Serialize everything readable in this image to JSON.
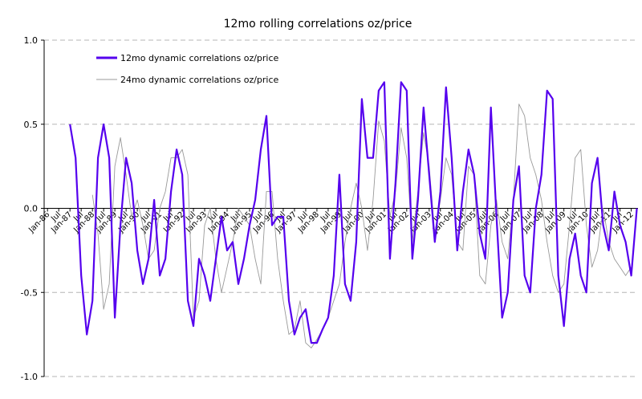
{
  "chart_data": {
    "type": "line",
    "title": "12mo rolling correlations oz/price",
    "xlabel": "",
    "ylabel": "",
    "ylim": [
      -1.0,
      1.0
    ],
    "y_ticks": [
      "1.0",
      "0.5",
      "0.0",
      "-0.5",
      "-1.0"
    ],
    "grid": true,
    "legend_position": "top-left",
    "x_tick_labels": [
      "Jan-86",
      "Jul",
      "Jan-87",
      "Jul",
      "Jan-88",
      "Jul",
      "Jan-89",
      "Jul",
      "Jan-90",
      "Jul",
      "Jan-91",
      "Jul",
      "Jan-92",
      "Jul",
      "Jan-93",
      "Jul",
      "Jan-94",
      "Jul",
      "Jan-95",
      "Jul",
      "Jan-96",
      "Jul",
      "Jan-97",
      "Jul",
      "Jan-98",
      "Jul",
      "Jan-99",
      "Jul",
      "Jan-00",
      "Jul",
      "Jan-01",
      "Jul",
      "Jan-02",
      "Jul",
      "Jan-03",
      "Jul",
      "Jan-04",
      "Jul",
      "Jan-05",
      "Jul",
      "Jan-06",
      "Jul",
      "Jan-07",
      "Jul",
      "Jan-08",
      "Jul",
      "Jan-09",
      "Jul",
      "Jan-10",
      "Jul",
      "Jan-11",
      "Jul",
      "Jan-12"
    ],
    "x": [
      1987.0,
      1987.25,
      1987.5,
      1987.75,
      1988.0,
      1988.25,
      1988.5,
      1988.75,
      1989.0,
      1989.25,
      1989.5,
      1989.75,
      1990.0,
      1990.25,
      1990.5,
      1990.75,
      1991.0,
      1991.25,
      1991.5,
      1991.75,
      1992.0,
      1992.25,
      1992.5,
      1992.75,
      1993.0,
      1993.25,
      1993.5,
      1993.75,
      1994.0,
      1994.25,
      1994.5,
      1994.75,
      1995.0,
      1995.25,
      1995.5,
      1995.75,
      1996.0,
      1996.25,
      1996.5,
      1996.75,
      1997.0,
      1997.25,
      1997.5,
      1997.75,
      1998.0,
      1998.25,
      1998.5,
      1998.75,
      1999.0,
      1999.25,
      1999.5,
      1999.75,
      2000.0,
      2000.25,
      2000.5,
      2000.75,
      2001.0,
      2001.25,
      2001.5,
      2001.75,
      2002.0,
      2002.25,
      2002.5,
      2002.75,
      2003.0,
      2003.25,
      2003.5,
      2003.75,
      2004.0,
      2004.25,
      2004.5,
      2004.75,
      2005.0,
      2005.25,
      2005.5,
      2005.75,
      2006.0,
      2006.25,
      2006.5,
      2006.75,
      2007.0,
      2007.25,
      2007.5,
      2007.75,
      2008.0,
      2008.25,
      2008.5,
      2008.75,
      2009.0,
      2009.25,
      2009.5,
      2009.75,
      2010.0,
      2010.25,
      2010.5,
      2010.75,
      2011.0,
      2011.25,
      2011.5,
      2011.75,
      2012.0,
      2012.25
    ],
    "series": [
      {
        "name": "12mo dynamic correlations oz/price",
        "color": "#5500ee",
        "values": [
          0.5,
          0.3,
          -0.4,
          -0.75,
          -0.55,
          0.3,
          0.5,
          0.3,
          -0.65,
          -0.1,
          0.3,
          0.15,
          -0.25,
          -0.45,
          -0.3,
          0.05,
          -0.4,
          -0.3,
          0.1,
          0.35,
          0.2,
          -0.55,
          -0.7,
          -0.3,
          -0.4,
          -0.55,
          -0.3,
          -0.05,
          -0.25,
          -0.2,
          -0.45,
          -0.3,
          -0.1,
          0.05,
          0.35,
          0.55,
          -0.1,
          -0.05,
          -0.05,
          -0.55,
          -0.75,
          -0.65,
          -0.6,
          -0.8,
          -0.8,
          -0.72,
          -0.65,
          -0.4,
          0.2,
          -0.45,
          -0.55,
          -0.2,
          0.65,
          0.3,
          0.3,
          0.7,
          0.75,
          -0.3,
          0.15,
          0.75,
          0.7,
          -0.3,
          0.05,
          0.6,
          0.2,
          -0.2,
          0.1,
          0.72,
          0.3,
          -0.25,
          0.1,
          0.35,
          0.2,
          -0.15,
          -0.3,
          0.6,
          -0.05,
          -0.65,
          -0.5,
          0.05,
          0.25,
          -0.4,
          -0.5,
          0.0,
          0.2,
          0.7,
          0.65,
          -0.4,
          -0.7,
          -0.3,
          -0.15,
          -0.4,
          -0.5,
          0.15,
          0.3,
          -0.1,
          -0.25,
          0.1,
          -0.1,
          -0.2,
          -0.4,
          0.0
        ],
        "style": "thick"
      },
      {
        "name": "24mo dynamic correlations oz/price",
        "color": "#999999",
        "values": [
          null,
          null,
          null,
          null,
          0.08,
          -0.15,
          -0.6,
          -0.45,
          0.25,
          0.42,
          0.2,
          -0.05,
          0.05,
          -0.1,
          -0.3,
          -0.25,
          0.0,
          0.1,
          0.3,
          0.3,
          0.35,
          0.2,
          -0.65,
          -0.55,
          -0.1,
          0.0,
          -0.3,
          -0.5,
          -0.35,
          -0.2,
          0.0,
          -0.05,
          -0.1,
          -0.3,
          -0.45,
          0.1,
          0.1,
          -0.3,
          -0.55,
          -0.75,
          -0.72,
          -0.55,
          -0.8,
          -0.83,
          -0.78,
          -0.72,
          -0.65,
          -0.55,
          -0.45,
          -0.2,
          0.0,
          0.15,
          0.0,
          -0.25,
          0.05,
          0.52,
          0.4,
          -0.05,
          0.1,
          0.48,
          0.3,
          -0.2,
          0.1,
          0.45,
          0.25,
          -0.15,
          0.05,
          0.3,
          0.2,
          -0.2,
          -0.25,
          0.25,
          0.2,
          -0.4,
          -0.45,
          -0.1,
          0.05,
          -0.2,
          -0.3,
          0.05,
          0.62,
          0.55,
          0.3,
          0.2,
          0.05,
          -0.2,
          -0.4,
          -0.5,
          -0.45,
          -0.1,
          0.3,
          0.35,
          -0.1,
          -0.35,
          -0.25,
          0.0,
          -0.2,
          -0.3,
          -0.35,
          -0.4,
          -0.35,
          null
        ],
        "style": "thin"
      }
    ]
  }
}
